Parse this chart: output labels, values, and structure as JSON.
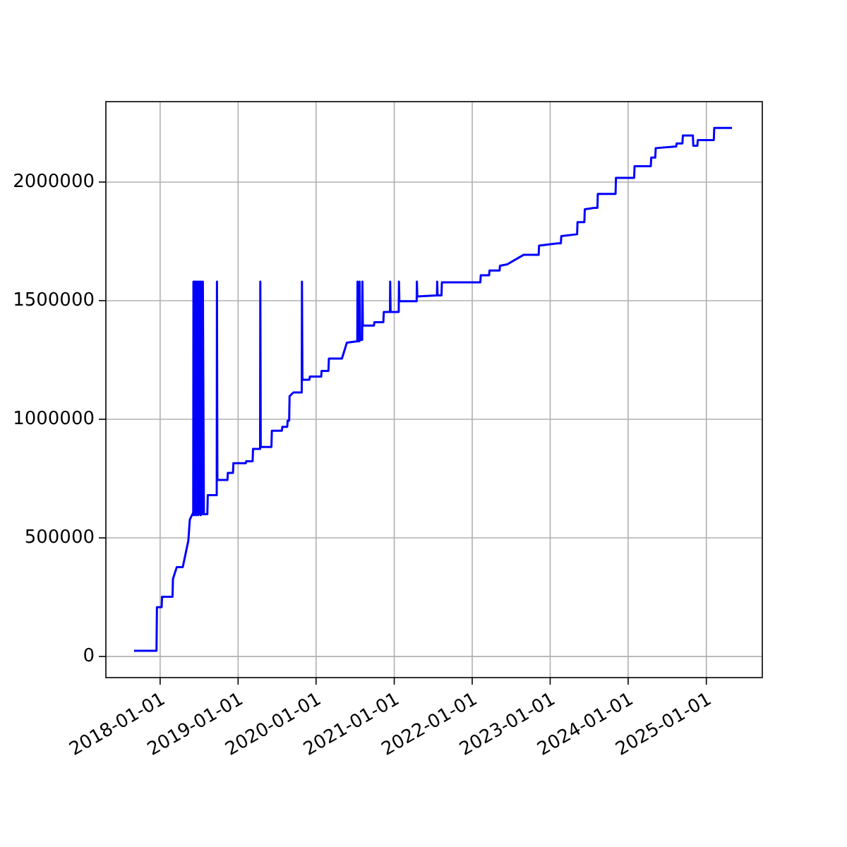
{
  "chart_data": {
    "type": "line",
    "xlim": [
      "2017-04-22",
      "2025-09-20"
    ],
    "ylim": [
      -89000,
      2339000
    ],
    "xticks": [
      "2018-01-01",
      "2019-01-01",
      "2020-01-01",
      "2021-01-01",
      "2022-01-01",
      "2023-01-01",
      "2024-01-01",
      "2025-01-01"
    ],
    "yticks": [
      0,
      500000,
      1000000,
      1500000,
      2000000
    ],
    "grid": true,
    "x": [
      "2017-09-01",
      "2017-12-15",
      "2017-12-17",
      "2018-01-08",
      "2018-01-10",
      "2018-02-28",
      "2018-03-02",
      "2018-03-20",
      "2018-04-17",
      "2018-05-13",
      "2018-05-20",
      "2018-06-05",
      "2018-06-06",
      "2018-06-08",
      "2018-06-10",
      "2018-06-13",
      "2018-06-15",
      "2018-06-18",
      "2018-06-20",
      "2018-06-23",
      "2018-06-25",
      "2018-06-28",
      "2018-06-30",
      "2018-07-04",
      "2018-07-06",
      "2018-07-10",
      "2018-07-12",
      "2018-07-18",
      "2018-07-20",
      "2018-07-25",
      "2018-08-10",
      "2018-08-12",
      "2018-09-23",
      "2018-09-24",
      "2018-09-26",
      "2018-11-12",
      "2018-11-14",
      "2018-12-08",
      "2018-12-10",
      "2019-02-06",
      "2019-02-08",
      "2019-03-10",
      "2019-03-12",
      "2019-04-14",
      "2019-04-15",
      "2019-04-17",
      "2019-06-06",
      "2019-06-08",
      "2019-07-25",
      "2019-07-27",
      "2019-08-19",
      "2019-08-21",
      "2019-08-28",
      "2019-08-30",
      "2019-09-17",
      "2019-10-26",
      "2019-10-27",
      "2019-10-29",
      "2019-12-01",
      "2019-12-03",
      "2020-01-25",
      "2020-01-27",
      "2020-02-28",
      "2020-03-01",
      "2020-05-01",
      "2020-05-13",
      "2020-05-24",
      "2020-07-12",
      "2020-07-13",
      "2020-07-15",
      "2020-07-22",
      "2020-07-23",
      "2020-07-25",
      "2020-08-04",
      "2020-08-05",
      "2020-08-07",
      "2020-09-28",
      "2020-09-30",
      "2020-11-11",
      "2020-11-13",
      "2020-12-12",
      "2020-12-13",
      "2020-12-15",
      "2021-01-22",
      "2021-01-23",
      "2021-01-25",
      "2021-04-16",
      "2021-04-17",
      "2021-04-19",
      "2021-07-20",
      "2021-07-21",
      "2021-07-23",
      "2021-08-10",
      "2021-08-12",
      "2022-02-08",
      "2022-02-10",
      "2022-03-21",
      "2022-03-23",
      "2022-05-09",
      "2022-05-11",
      "2022-06-14",
      "2022-08-29",
      "2022-11-08",
      "2022-11-10",
      "2023-02-05",
      "2023-02-20",
      "2023-02-22",
      "2023-05-07",
      "2023-05-09",
      "2023-06-10",
      "2023-06-12",
      "2023-07-26",
      "2023-08-10",
      "2023-08-12",
      "2023-11-03",
      "2023-11-05",
      "2024-01-29",
      "2024-01-31",
      "2024-04-16",
      "2024-04-18",
      "2024-05-07",
      "2024-05-09",
      "2024-08-13",
      "2024-08-15",
      "2024-09-11",
      "2024-09-13",
      "2024-10-30",
      "2024-11-01",
      "2024-11-20",
      "2024-11-22",
      "2025-02-05",
      "2025-02-07",
      "2025-05-01"
    ],
    "series": [
      {
        "color": "#0000ff",
        "values": [
          24000,
          24000,
          208000,
          208000,
          252000,
          252000,
          327000,
          377000,
          377000,
          488000,
          577000,
          607000,
          1580000,
          595000,
          1580000,
          600000,
          1580000,
          595000,
          1580000,
          600000,
          1580000,
          595000,
          1580000,
          600000,
          1580000,
          595000,
          1580000,
          600000,
          1580000,
          600000,
          600000,
          680000,
          680000,
          1580000,
          744000,
          744000,
          774000,
          774000,
          815000,
          815000,
          823000,
          823000,
          875000,
          875000,
          1580000,
          883000,
          883000,
          952000,
          952000,
          968000,
          968000,
          994000,
          994000,
          1097000,
          1113000,
          1113000,
          1580000,
          1167000,
          1167000,
          1180000,
          1180000,
          1204000,
          1204000,
          1256000,
          1256000,
          1290000,
          1323000,
          1329000,
          1580000,
          1329000,
          1329000,
          1580000,
          1335000,
          1335000,
          1580000,
          1395000,
          1395000,
          1409000,
          1409000,
          1452000,
          1452000,
          1580000,
          1452000,
          1452000,
          1580000,
          1498000,
          1498000,
          1580000,
          1518000,
          1522000,
          1580000,
          1522000,
          1522000,
          1577000,
          1577000,
          1607000,
          1607000,
          1627000,
          1627000,
          1647000,
          1653000,
          1693000,
          1693000,
          1732000,
          1742000,
          1742000,
          1772000,
          1780000,
          1831000,
          1831000,
          1885000,
          1891000,
          1891000,
          1950000,
          1950000,
          2018000,
          2018000,
          2067000,
          2067000,
          2103000,
          2103000,
          2143000,
          2150000,
          2163000,
          2163000,
          2196000,
          2196000,
          2153000,
          2153000,
          2177000,
          2177000,
          2228000,
          2228000
        ]
      }
    ]
  }
}
